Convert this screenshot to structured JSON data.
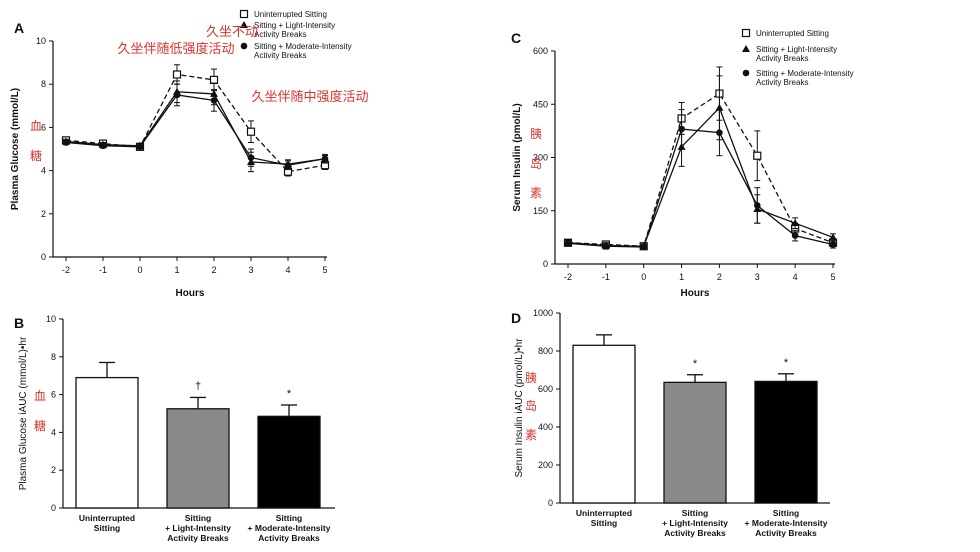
{
  "chart_data": [
    {
      "panel": "A",
      "type": "line",
      "xlabel": "Hours",
      "ylabel": "Plasma Glucose (mmol/L)",
      "ylabel_note": [
        "血",
        "糖"
      ],
      "x": [
        -2,
        -1,
        0,
        1,
        2,
        3,
        4,
        5
      ],
      "ylim": [
        0,
        10
      ],
      "yticks": [
        0,
        2,
        4,
        6,
        8,
        10
      ],
      "series": [
        {
          "name": "Uninterrupted Sitting",
          "marker": "open-square",
          "dash": true,
          "values": [
            5.4,
            5.25,
            5.1,
            8.45,
            8.2,
            5.8,
            3.95,
            4.25
          ],
          "errors": [
            0.1,
            0.1,
            0.1,
            0.45,
            0.5,
            0.5,
            0.2,
            0.2
          ]
        },
        {
          "name": "Sitting + Light-Intensity Activity Breaks",
          "marker": "triangle",
          "dash": false,
          "values": [
            5.35,
            5.2,
            5.15,
            7.65,
            7.55,
            4.4,
            4.3,
            4.55
          ],
          "errors": [
            0.1,
            0.1,
            0.1,
            0.5,
            0.5,
            0.45,
            0.2,
            0.2
          ]
        },
        {
          "name": "Sitting + Moderate-Intensity Activity Breaks",
          "marker": "filled-circle",
          "dash": false,
          "values": [
            5.3,
            5.15,
            5.1,
            7.5,
            7.25,
            4.6,
            4.25,
            4.55
          ],
          "errors": [
            0.1,
            0.1,
            0.1,
            0.5,
            0.5,
            0.4,
            0.2,
            0.15
          ]
        }
      ],
      "annotations": [
        "久坐不动",
        "久坐伴随低强度活动",
        "久坐伴随中强度活动"
      ]
    },
    {
      "panel": "B",
      "type": "bar",
      "ylabel": "Plasma Glucose iAUC (mmol/L)•hr",
      "ylabel_note": [
        "血",
        "糖"
      ],
      "ylim": [
        0,
        10
      ],
      "yticks": [
        0,
        2,
        4,
        6,
        8,
        10
      ],
      "categories": [
        [
          "Uninterrupted",
          "Sitting"
        ],
        [
          "Sitting",
          "+ Light-Intensity",
          "Activity Breaks"
        ],
        [
          "Sitting",
          "+ Moderate-Intensity",
          "Activity Breaks"
        ]
      ],
      "values": [
        6.9,
        5.25,
        4.85
      ],
      "errors": [
        0.8,
        0.6,
        0.6
      ],
      "bar_colors": [
        "#ffffff",
        "#8a8a8a",
        "#000000"
      ],
      "significance": [
        "",
        "†",
        "*"
      ]
    },
    {
      "panel": "C",
      "type": "line",
      "xlabel": "Hours",
      "ylabel": "Serum Insulin (pmol/L)",
      "ylabel_note": [
        "胰",
        "岛",
        "素"
      ],
      "x": [
        -2,
        -1,
        0,
        1,
        2,
        3,
        4,
        5
      ],
      "ylim": [
        0,
        600
      ],
      "yticks": [
        0,
        150,
        300,
        450,
        600
      ],
      "series": [
        {
          "name": "Uninterrupted Sitting",
          "marker": "open-square",
          "dash": true,
          "values": [
            60,
            55,
            50,
            410,
            480,
            305,
            100,
            60
          ],
          "errors": [
            8,
            8,
            6,
            45,
            75,
            70,
            15,
            10
          ]
        },
        {
          "name": "Sitting + Light-Intensity Activity Breaks",
          "marker": "triangle",
          "dash": false,
          "values": [
            60,
            52,
            50,
            330,
            440,
            155,
            115,
            75
          ],
          "errors": [
            8,
            8,
            6,
            55,
            90,
            40,
            15,
            10
          ]
        },
        {
          "name": "Sitting + Moderate-Intensity Activity Breaks",
          "marker": "filled-circle",
          "dash": false,
          "values": [
            58,
            50,
            48,
            380,
            370,
            165,
            80,
            55
          ],
          "errors": [
            8,
            8,
            6,
            55,
            65,
            50,
            15,
            10
          ]
        }
      ]
    },
    {
      "panel": "D",
      "type": "bar",
      "ylabel": "Serum Insulin iAUC (pmol/L)•hr",
      "ylabel_note": [
        "胰",
        "岛",
        "素"
      ],
      "ylim": [
        0,
        1000
      ],
      "yticks": [
        0,
        200,
        400,
        600,
        800,
        1000
      ],
      "categories": [
        [
          "Uninterrupted",
          "Sitting"
        ],
        [
          "Sitting",
          "+ Light-Intensity",
          "Activity Breaks"
        ],
        [
          "Sitting",
          "+ Moderate-Intensity",
          "Activity Breaks"
        ]
      ],
      "values": [
        830,
        635,
        640
      ],
      "errors": [
        55,
        40,
        40
      ],
      "bar_colors": [
        "#ffffff",
        "#8a8a8a",
        "#000000"
      ],
      "significance": [
        "",
        "*",
        "*"
      ]
    }
  ]
}
